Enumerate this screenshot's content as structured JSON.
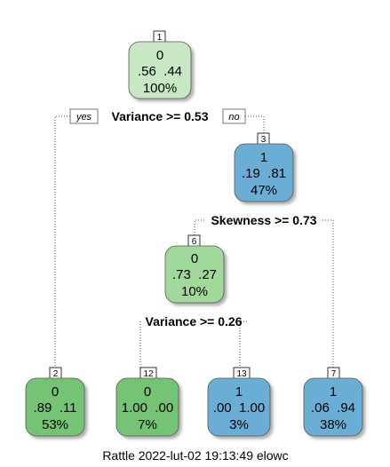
{
  "nodes": [
    {
      "id": "1",
      "cls": "0",
      "probs": ".56  .44",
      "pct": "100%",
      "fill": "#c8e8c4"
    },
    {
      "id": "3",
      "cls": "1",
      "probs": ".19  .81",
      "pct": "47%",
      "fill": "#6aaed6"
    },
    {
      "id": "6",
      "cls": "0",
      "probs": ".73  .27",
      "pct": "10%",
      "fill": "#a0d99b"
    },
    {
      "id": "2",
      "cls": "0",
      "probs": ".89  .11",
      "pct": "53%",
      "fill": "#74c476"
    },
    {
      "id": "12",
      "cls": "0",
      "probs": "1.00  .00",
      "pct": "7%",
      "fill": "#74c476"
    },
    {
      "id": "13",
      "cls": "1",
      "probs": ".00  1.00",
      "pct": "3%",
      "fill": "#6aaed6"
    },
    {
      "id": "7",
      "cls": "1",
      "probs": ".06  .94",
      "pct": "38%",
      "fill": "#6aaed6"
    }
  ],
  "splits": {
    "root": "Variance >= 0.53",
    "node3": "Skewness >= 0.73",
    "node6": "Variance >= 0.26"
  },
  "labels": {
    "yes": "yes",
    "no": "no"
  },
  "caption": "Rattle 2022-lut-02 19:13:49 elowc"
}
